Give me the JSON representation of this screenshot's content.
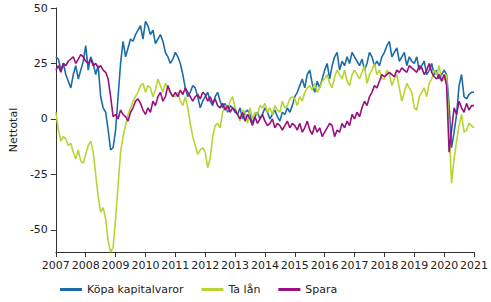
{
  "chart_data": {
    "type": "line",
    "y_label": "Nettotal",
    "categories": [
      "2007",
      null,
      null,
      null,
      null,
      null,
      null,
      null,
      null,
      null,
      null,
      null,
      "2008",
      null,
      null,
      null,
      null,
      null,
      null,
      null,
      null,
      null,
      null,
      null,
      "2009",
      null,
      null,
      null,
      null,
      null,
      null,
      null,
      null,
      null,
      null,
      null,
      "2010",
      null,
      null,
      null,
      null,
      null,
      null,
      null,
      null,
      null,
      null,
      null,
      "2011",
      null,
      null,
      null,
      null,
      null,
      null,
      null,
      null,
      null,
      null,
      null,
      "2012",
      null,
      null,
      null,
      null,
      null,
      null,
      null,
      null,
      null,
      null,
      null,
      "2013",
      null,
      null,
      null,
      null,
      null,
      null,
      null,
      null,
      null,
      null,
      null,
      "2014",
      null,
      null,
      null,
      null,
      null,
      null,
      null,
      null,
      null,
      null,
      null,
      "2015",
      null,
      null,
      null,
      null,
      null,
      null,
      null,
      null,
      null,
      null,
      null,
      "2016",
      null,
      null,
      null,
      null,
      null,
      null,
      null,
      null,
      null,
      null,
      null,
      "2017",
      null,
      null,
      null,
      null,
      null,
      null,
      null,
      null,
      null,
      null,
      null,
      "2018",
      null,
      null,
      null,
      null,
      null,
      null,
      null,
      null,
      null,
      null,
      null,
      "2019",
      null,
      null,
      null,
      null,
      null,
      null,
      null,
      null,
      null,
      null,
      null,
      "2020",
      null,
      null,
      null,
      null,
      null,
      null,
      null,
      null,
      null,
      null,
      null,
      "2021"
    ],
    "series": [
      {
        "name": "Köpa kapitalvaror",
        "color": "#1b6ca8",
        "values": [
          28,
          27,
          22,
          25,
          20,
          17,
          14,
          20,
          24,
          18,
          22,
          26,
          33,
          22,
          28,
          25,
          20,
          24,
          10,
          5,
          3,
          -5,
          -14,
          -13,
          -5,
          10,
          25,
          35,
          28,
          32,
          36,
          35,
          38,
          40,
          42,
          36,
          44,
          42,
          38,
          40,
          34,
          36,
          38,
          35,
          30,
          28,
          25,
          27,
          30,
          28,
          25,
          20,
          14,
          10,
          12,
          15,
          14,
          10,
          5,
          8,
          10,
          12,
          8,
          6,
          10,
          12,
          8,
          5,
          7,
          3,
          6,
          5,
          3,
          2,
          5,
          0,
          3,
          4,
          2,
          -2,
          1,
          3,
          0,
          2,
          5,
          3,
          0,
          2,
          4,
          1,
          -1,
          3,
          2,
          5,
          3,
          6,
          10,
          12,
          15,
          18,
          14,
          20,
          22,
          16,
          12,
          17,
          14,
          18,
          22,
          25,
          18,
          24,
          28,
          30,
          22,
          26,
          24,
          28,
          25,
          30,
          28,
          26,
          24,
          27,
          22,
          25,
          30,
          28,
          24,
          26,
          24,
          28,
          30,
          33,
          35,
          28,
          30,
          32,
          26,
          28,
          30,
          24,
          28,
          26,
          25,
          28,
          22,
          24,
          26,
          20,
          22,
          25,
          20,
          22,
          18,
          20,
          22,
          20,
          6,
          -13,
          -6,
          2,
          15,
          20,
          10,
          9,
          11,
          12,
          12
        ]
      },
      {
        "name": "Ta lån",
        "color": "#b8d432",
        "values": [
          3,
          -5,
          -10,
          -8,
          -9,
          -12,
          -11,
          -15,
          -18,
          -14,
          -19,
          -20,
          -16,
          -12,
          -10,
          -15,
          -25,
          -35,
          -42,
          -40,
          -45,
          -55,
          -60,
          -58,
          -45,
          -30,
          -15,
          -8,
          -3,
          2,
          5,
          8,
          10,
          12,
          15,
          16,
          12,
          15,
          14,
          10,
          13,
          18,
          15,
          12,
          16,
          14,
          12,
          10,
          10,
          12,
          8,
          6,
          10,
          5,
          -2,
          -8,
          -12,
          -16,
          -14,
          -13,
          -15,
          -22,
          -18,
          -8,
          -3,
          -2,
          -4,
          3,
          6,
          4,
          8,
          10,
          5,
          2,
          -1,
          4,
          3,
          -2,
          5,
          0,
          3,
          2,
          6,
          5,
          7,
          3,
          5,
          2,
          6,
          4,
          3,
          8,
          5,
          6,
          9,
          10,
          9,
          6,
          10,
          8,
          12,
          14,
          15,
          13,
          16,
          12,
          14,
          17,
          18,
          20,
          16,
          14,
          19,
          22,
          20,
          18,
          22,
          17,
          15,
          20,
          22,
          20,
          18,
          21,
          24,
          16,
          20,
          22,
          25,
          20,
          22,
          18,
          18,
          22,
          20,
          15,
          18,
          20,
          14,
          8,
          12,
          16,
          14,
          12,
          5,
          4,
          10,
          12,
          14,
          10,
          16,
          18,
          22,
          20,
          24,
          17,
          18,
          20,
          -5,
          -29,
          -18,
          -10,
          -3,
          2,
          -6,
          -5,
          -2,
          -3,
          -4
        ]
      },
      {
        "name": "Spara",
        "color": "#990f7f",
        "values": [
          22,
          24,
          21,
          25,
          24,
          26,
          27,
          28,
          25,
          27,
          29,
          28,
          26,
          25,
          27,
          24,
          25,
          23,
          24,
          22,
          21,
          18,
          10,
          1,
          2,
          0,
          4,
          2,
          1,
          -1,
          3,
          5,
          8,
          9,
          7,
          4,
          2,
          5,
          3,
          8,
          6,
          10,
          12,
          8,
          10,
          15,
          12,
          10,
          12,
          10,
          13,
          11,
          14,
          12,
          10,
          8,
          10,
          11,
          9,
          12,
          11,
          8,
          10,
          7,
          9,
          6,
          5,
          7,
          4,
          6,
          3,
          5,
          4,
          2,
          0,
          3,
          -1,
          2,
          0,
          -3,
          1,
          -2,
          0,
          2,
          -1,
          -3,
          -2,
          0,
          -4,
          -2,
          -3,
          -5,
          -3,
          -1,
          -4,
          -2,
          -3,
          -5,
          -2,
          -6,
          -4,
          -1,
          -5,
          -7,
          -3,
          -6,
          -4,
          -8,
          -6,
          -4,
          -2,
          -3,
          -8,
          -5,
          -6,
          -2,
          -4,
          -1,
          -3,
          2,
          0,
          3,
          1,
          5,
          8,
          6,
          10,
          12,
          15,
          14,
          17,
          20,
          19,
          20,
          21,
          20,
          19,
          22,
          21,
          23,
          22,
          21,
          24,
          23,
          22,
          21,
          24,
          23,
          20,
          22,
          25,
          21,
          19,
          18,
          20,
          17,
          20,
          15,
          -15,
          -5,
          5,
          2,
          8,
          5,
          3,
          7,
          4,
          6,
          6
        ]
      }
    ],
    "ylim": [
      -60,
      50
    ],
    "yticks": [
      -50,
      -25,
      0,
      25,
      50
    ],
    "grid": false,
    "legend": "bottom"
  }
}
